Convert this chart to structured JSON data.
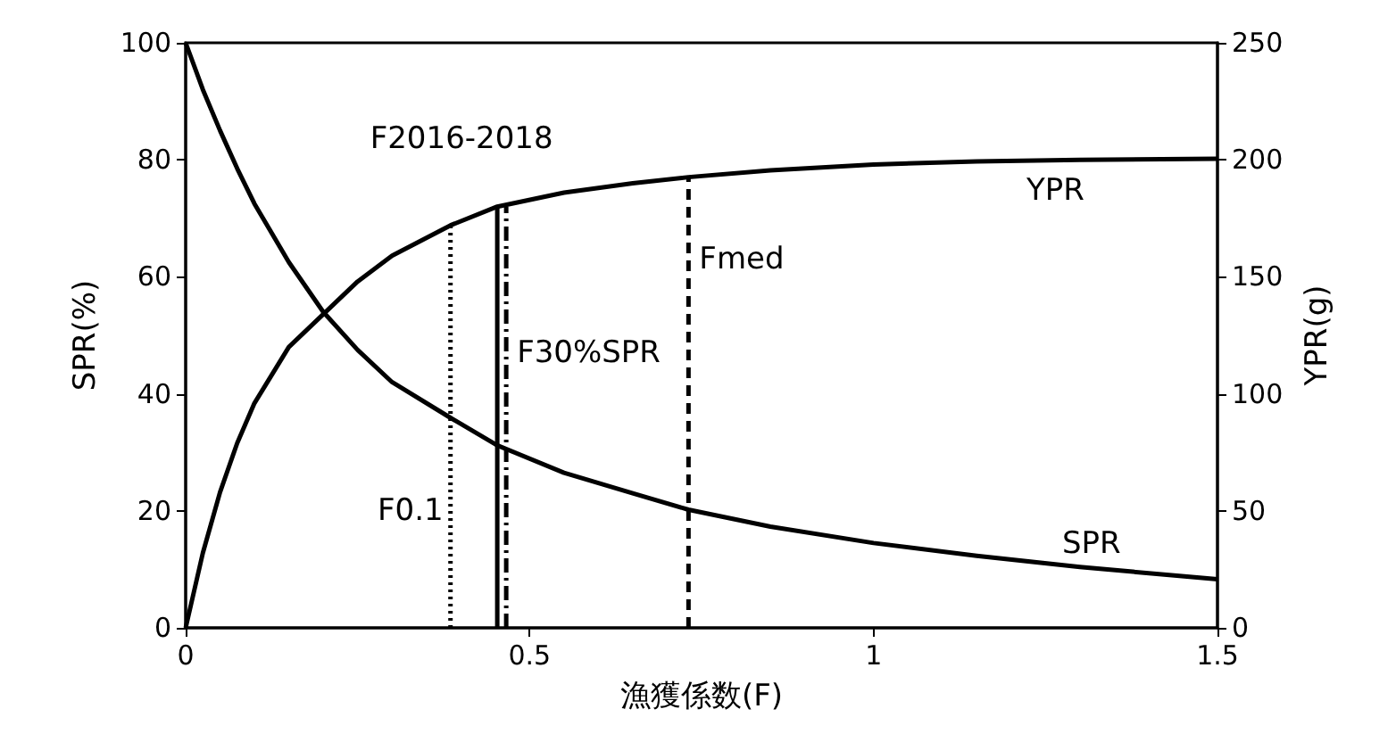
{
  "chart_data": {
    "type": "line",
    "xlabel": "漁獲係数(F)",
    "ylabel": "SPR(%)",
    "y2label": "YPR(g)",
    "x": [
      0,
      0.025,
      0.05,
      0.075,
      0.1,
      0.15,
      0.2,
      0.25,
      0.3,
      0.385,
      0.453,
      0.55,
      0.65,
      0.731,
      0.85,
      1.0,
      1.15,
      1.3,
      1.5
    ],
    "series": [
      {
        "name": "SPR",
        "color": "#000000",
        "values": [
          100,
          92,
          85,
          78.5,
          72.5,
          62.5,
          54,
          47.5,
          42,
          35.9,
          31.2,
          26.5,
          23,
          20.2,
          17.3,
          14.5,
          12.3,
          10.4,
          8.3
        ]
      },
      {
        "name": "YPR",
        "color": "#000000",
        "axis": "y2",
        "values": [
          0,
          32,
          58,
          79,
          96,
          120,
          134,
          148,
          159,
          172,
          180,
          186,
          190,
          192.6,
          195.5,
          198,
          199.3,
          200,
          200.5
        ]
      },
      {
        "color": "#000000",
        "axis": "y2",
        "x": [
          0.385,
          0.385
        ],
        "values": [
          0,
          172
        ],
        "line_style": "dotted"
      },
      {
        "color": "#000000",
        "axis": "y2",
        "x": [
          0.453,
          0.453
        ],
        "values": [
          0,
          180
        ],
        "line_style": "solid"
      },
      {
        "color": "#000000",
        "axis": "y2",
        "x": [
          0.466,
          0.466
        ],
        "values": [
          0,
          180
        ],
        "line_style": "dashdot"
      },
      {
        "color": "#000000",
        "axis": "y2",
        "x": [
          0.731,
          0.731
        ],
        "values": [
          0,
          192.6
        ],
        "line_style": "dashed"
      }
    ],
    "xlim": [
      0,
      1.5
    ],
    "xticks": [
      0,
      0.5,
      1,
      1.5
    ],
    "ylim": [
      0,
      100
    ],
    "yticks": [
      0,
      20,
      40,
      60,
      80,
      100
    ],
    "y2lim": [
      0,
      250
    ],
    "y2ticks": [
      0,
      50,
      100,
      150,
      200,
      250
    ],
    "annotations": [
      {
        "text": "F2016-2018",
        "x": 0.453,
        "y": 72
      },
      {
        "text": "F30%SPR",
        "x": 0.466,
        "y": 47
      },
      {
        "text": "F0.1",
        "x": 0.385,
        "y": 20
      },
      {
        "text": "Fmed",
        "x": 0.731,
        "y": 63
      }
    ],
    "marker": "none",
    "grid": false,
    "legend": false
  }
}
